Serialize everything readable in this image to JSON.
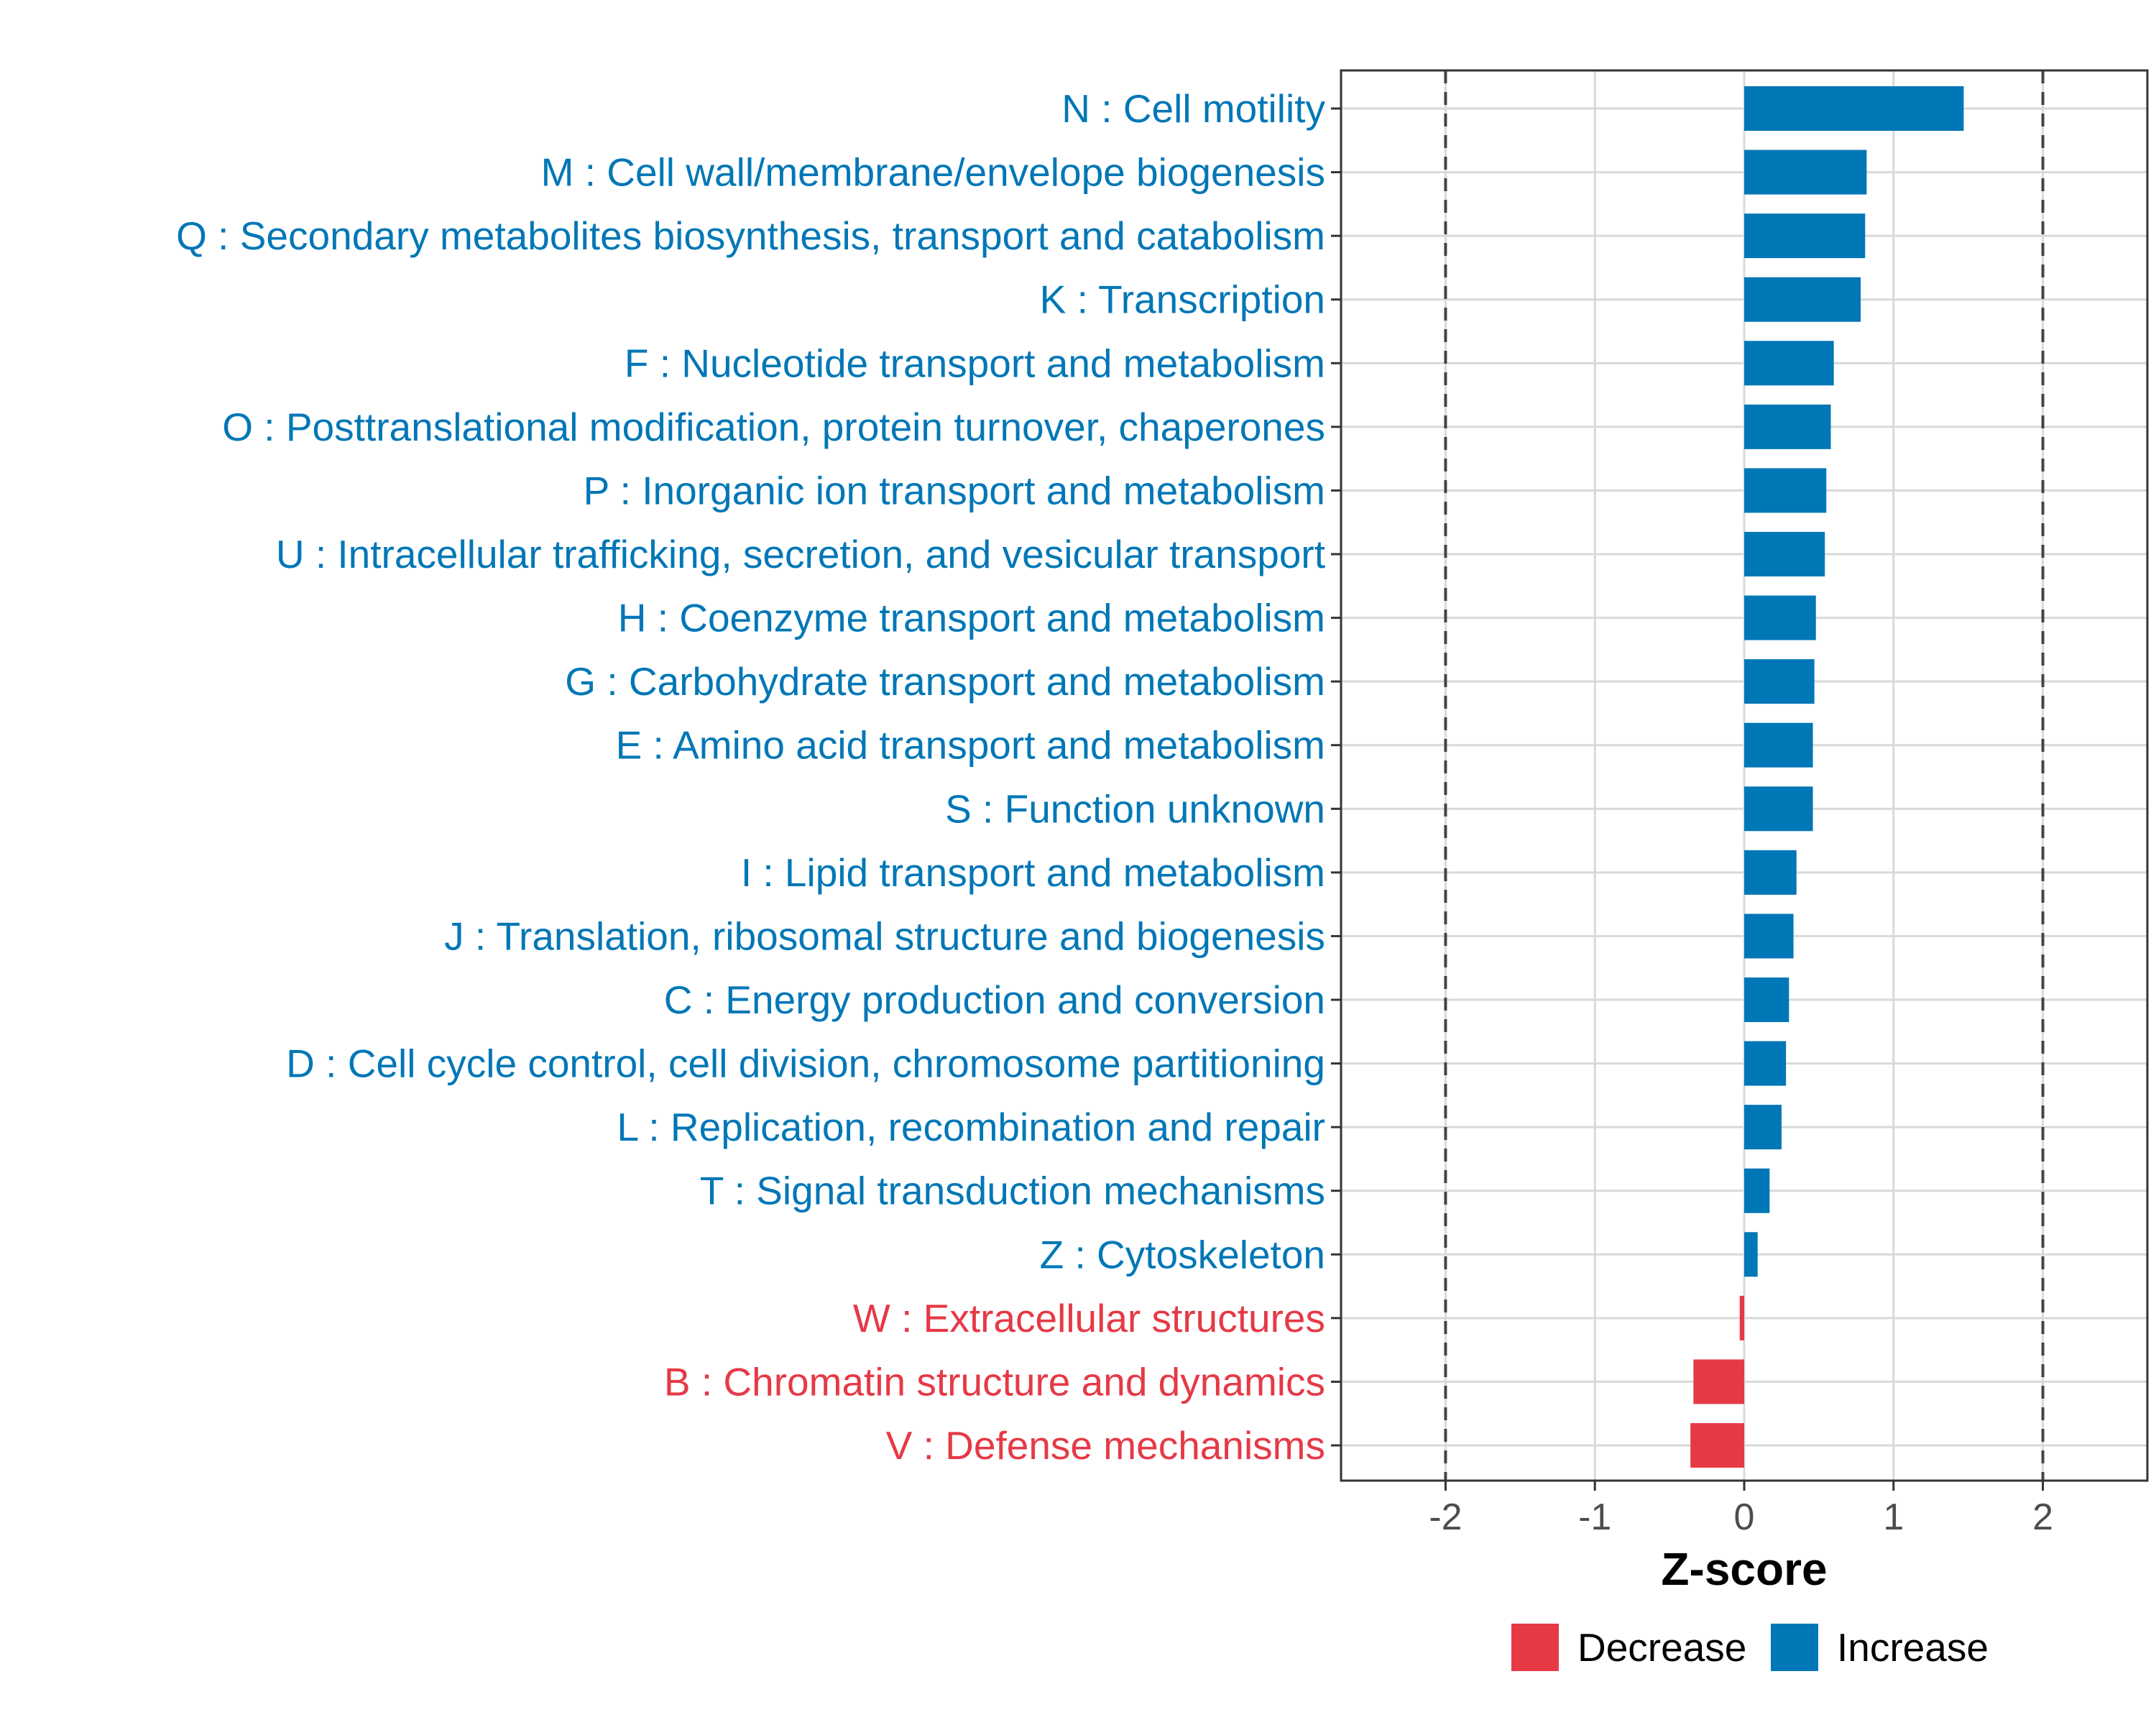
{
  "chart_data": {
    "type": "bar",
    "orientation": "horizontal",
    "title": "",
    "xlabel": "Z-score",
    "ylabel": "",
    "xlim": [
      -2.7,
      2.7
    ],
    "xticks": [
      "-2",
      "-1",
      "0",
      "1",
      "2"
    ],
    "xtick_values": [
      -2,
      -1,
      0,
      1,
      2
    ],
    "reference_lines": [
      -2,
      2
    ],
    "grid": true,
    "legend": {
      "placement": "bottom",
      "entries": [
        {
          "label": "Decrease",
          "color": "#E63946"
        },
        {
          "label": "Increase",
          "color": "#0077B6"
        }
      ]
    },
    "colors": {
      "Decrease": "#E63946",
      "Increase": "#0077B6"
    },
    "categories": [
      "N : Cell motility",
      "M : Cell wall/membrane/envelope biogenesis",
      "Q : Secondary metabolites biosynthesis, transport and catabolism",
      "K : Transcription",
      "F : Nucleotide transport and metabolism",
      "O : Posttranslational modification, protein turnover, chaperones",
      "P : Inorganic ion transport and metabolism",
      "U : Intracellular trafficking, secretion, and vesicular transport",
      "H : Coenzyme transport and metabolism",
      "G : Carbohydrate transport and metabolism",
      "E : Amino acid transport and metabolism",
      "S : Function unknown",
      "I : Lipid transport and metabolism",
      "J : Translation, ribosomal structure and biogenesis",
      "C : Energy production and conversion",
      "D : Cell cycle control, cell division, chromosome partitioning",
      "L : Replication, recombination and repair",
      "T : Signal transduction mechanisms",
      "Z : Cytoskeleton",
      "W : Extracellular structures",
      "B : Chromatin structure and dynamics",
      "V : Defense mechanisms"
    ],
    "values": [
      1.47,
      0.82,
      0.81,
      0.78,
      0.6,
      0.58,
      0.55,
      0.54,
      0.48,
      0.47,
      0.46,
      0.46,
      0.35,
      0.33,
      0.3,
      0.28,
      0.25,
      0.17,
      0.09,
      -0.03,
      -0.34,
      -0.36
    ],
    "groups": [
      "Increase",
      "Increase",
      "Increase",
      "Increase",
      "Increase",
      "Increase",
      "Increase",
      "Increase",
      "Increase",
      "Increase",
      "Increase",
      "Increase",
      "Increase",
      "Increase",
      "Increase",
      "Increase",
      "Increase",
      "Increase",
      "Increase",
      "Decrease",
      "Decrease",
      "Decrease"
    ]
  }
}
